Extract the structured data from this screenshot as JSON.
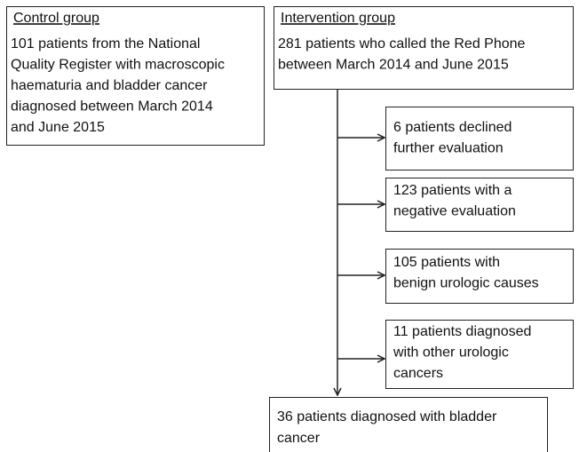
{
  "control": {
    "heading": "Control group",
    "lines": [
      "101 patients from the National",
      "Quality Register with macroscopic",
      "haematuria and bladder cancer",
      "diagnosed between March 2014",
      "and June 2015"
    ]
  },
  "intervention": {
    "heading": "Intervention group",
    "lines": [
      "281 patients who called the Red Phone",
      "between March 2014 and June 2015"
    ]
  },
  "outcomes": [
    {
      "lines": [
        "6 patients declined",
        "further evaluation"
      ]
    },
    {
      "lines": [
        "123 patients with a",
        "negative evaluation"
      ]
    },
    {
      "lines": [
        "105 patients with",
        "benign urologic causes"
      ]
    },
    {
      "lines": [
        "11 patients diagnosed",
        "with other urologic",
        "cancers"
      ]
    }
  ],
  "final": {
    "lines": [
      "36 patients diagnosed with bladder",
      "cancer"
    ]
  }
}
